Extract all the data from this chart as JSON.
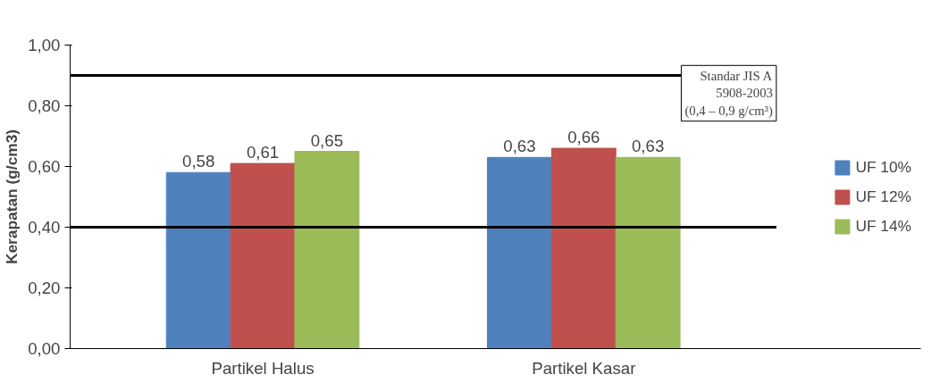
{
  "chart_data": {
    "type": "bar",
    "ylabel": "Kerapatan (g/cm3)",
    "categories": [
      "Partikel Halus",
      "Partikel Kasar"
    ],
    "series": [
      {
        "name": "UF 10%",
        "color": "#4f81bd",
        "values": [
          0.58,
          0.63
        ],
        "value_labels": [
          "0,58",
          "0,63"
        ]
      },
      {
        "name": "UF 12%",
        "color": "#c0504d",
        "values": [
          0.61,
          0.66
        ],
        "value_labels": [
          "0,61",
          "0,66"
        ]
      },
      {
        "name": "UF 14%",
        "color": "#9bbb59",
        "values": [
          0.65,
          0.63
        ],
        "value_labels": [
          "0,65",
          "0,63"
        ]
      }
    ],
    "ylim": [
      0,
      1
    ],
    "yticks": [
      {
        "value": 0,
        "label": "0,00"
      },
      {
        "value": 0.2,
        "label": "0,20"
      },
      {
        "value": 0.4,
        "label": "0,40"
      },
      {
        "value": 0.6,
        "label": "0,60"
      },
      {
        "value": 0.8,
        "label": "0,80"
      },
      {
        "value": 1,
        "label": "1,00"
      }
    ],
    "ref_lines": [
      {
        "axis": "y",
        "value": 0.9,
        "label": "Standar JIS A\n5908-2003\n(0,4 – 0,9 g/cm³)",
        "color": "#000000"
      },
      {
        "axis": "y",
        "value": 0.4,
        "label": null,
        "color": "#000000"
      }
    ],
    "grid": false,
    "legend": "right"
  }
}
